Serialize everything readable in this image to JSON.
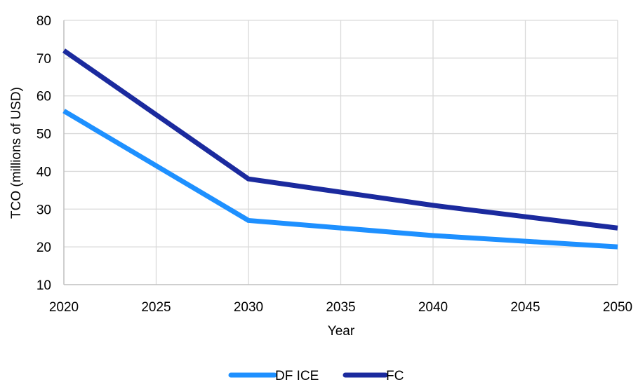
{
  "chart_data": {
    "type": "line",
    "title": "",
    "xlabel": "Year",
    "ylabel": "TCO (millions of USD)",
    "x": [
      2020,
      2025,
      2030,
      2035,
      2040,
      2045,
      2050
    ],
    "xlim": [
      2020,
      2050
    ],
    "ylim": [
      10,
      80
    ],
    "yticks": [
      10,
      20,
      30,
      40,
      50,
      60,
      70,
      80
    ],
    "xticks": [
      2020,
      2025,
      2030,
      2035,
      2040,
      2045,
      2050
    ],
    "grid": true,
    "legend_position": "bottom",
    "series": [
      {
        "name": "DF ICE",
        "color": "#1E90FF",
        "points": [
          [
            2020,
            56
          ],
          [
            2030,
            27
          ],
          [
            2040,
            23
          ],
          [
            2050,
            20
          ]
        ]
      },
      {
        "name": "FC",
        "color": "#1B2A9E",
        "points": [
          [
            2020,
            72
          ],
          [
            2030,
            38
          ],
          [
            2040,
            31
          ],
          [
            2050,
            25
          ]
        ]
      }
    ]
  }
}
